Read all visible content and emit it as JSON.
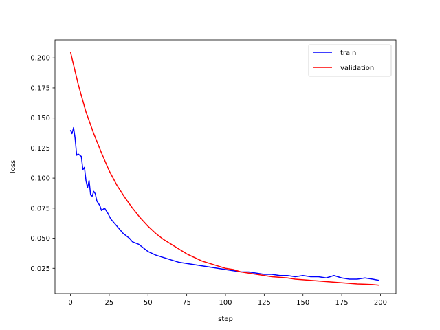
{
  "chart_data": {
    "type": "line",
    "xlabel": "step",
    "ylabel": "loss",
    "xlim": [
      -10,
      210
    ],
    "ylim": [
      0.004,
      0.215
    ],
    "xticks": [
      0,
      25,
      50,
      75,
      100,
      125,
      150,
      175,
      200
    ],
    "yticks": [
      0.025,
      0.05,
      0.075,
      0.1,
      0.125,
      0.15,
      0.175,
      0.2
    ],
    "xtick_labels": [
      "0",
      "25",
      "50",
      "75",
      "100",
      "125",
      "150",
      "175",
      "200"
    ],
    "ytick_labels": [
      "0.025",
      "0.050",
      "0.075",
      "0.100",
      "0.125",
      "0.150",
      "0.175",
      "0.200"
    ],
    "grid": false,
    "legend_position": "top-right",
    "series": [
      {
        "name": "train",
        "color": "#0000ff",
        "x": [
          0,
          1,
          2,
          3,
          4,
          5,
          6,
          7,
          8,
          9,
          10,
          11,
          12,
          13,
          14,
          15,
          16,
          17,
          18,
          19,
          20,
          22,
          24,
          26,
          28,
          30,
          32,
          34,
          36,
          38,
          40,
          42,
          44,
          46,
          48,
          50,
          55,
          60,
          65,
          70,
          75,
          80,
          85,
          90,
          95,
          100,
          105,
          110,
          115,
          120,
          125,
          130,
          135,
          140,
          145,
          150,
          155,
          160,
          165,
          170,
          175,
          180,
          185,
          190,
          195,
          199
        ],
        "y": [
          0.14,
          0.137,
          0.142,
          0.133,
          0.119,
          0.12,
          0.119,
          0.118,
          0.107,
          0.109,
          0.098,
          0.092,
          0.098,
          0.086,
          0.085,
          0.089,
          0.087,
          0.081,
          0.079,
          0.077,
          0.073,
          0.075,
          0.071,
          0.066,
          0.063,
          0.06,
          0.057,
          0.054,
          0.052,
          0.05,
          0.047,
          0.046,
          0.045,
          0.043,
          0.041,
          0.039,
          0.036,
          0.034,
          0.032,
          0.03,
          0.029,
          0.028,
          0.027,
          0.026,
          0.025,
          0.024,
          0.023,
          0.022,
          0.022,
          0.021,
          0.02,
          0.02,
          0.019,
          0.019,
          0.018,
          0.019,
          0.018,
          0.018,
          0.017,
          0.019,
          0.017,
          0.016,
          0.016,
          0.017,
          0.016,
          0.015
        ]
      },
      {
        "name": "validation",
        "color": "#ff0000",
        "x": [
          0,
          5,
          10,
          15,
          20,
          25,
          30,
          35,
          40,
          45,
          50,
          55,
          60,
          65,
          70,
          75,
          80,
          85,
          90,
          95,
          100,
          105,
          110,
          115,
          120,
          125,
          130,
          135,
          140,
          145,
          150,
          155,
          160,
          165,
          170,
          175,
          180,
          185,
          190,
          195,
          199
        ],
        "y": [
          0.205,
          0.178,
          0.155,
          0.137,
          0.121,
          0.106,
          0.094,
          0.084,
          0.075,
          0.067,
          0.06,
          0.054,
          0.049,
          0.045,
          0.041,
          0.037,
          0.034,
          0.031,
          0.029,
          0.027,
          0.025,
          0.024,
          0.022,
          0.021,
          0.02,
          0.019,
          0.018,
          0.0175,
          0.017,
          0.016,
          0.0155,
          0.015,
          0.0145,
          0.014,
          0.0135,
          0.013,
          0.0125,
          0.012,
          0.0118,
          0.0115,
          0.011
        ]
      }
    ]
  }
}
